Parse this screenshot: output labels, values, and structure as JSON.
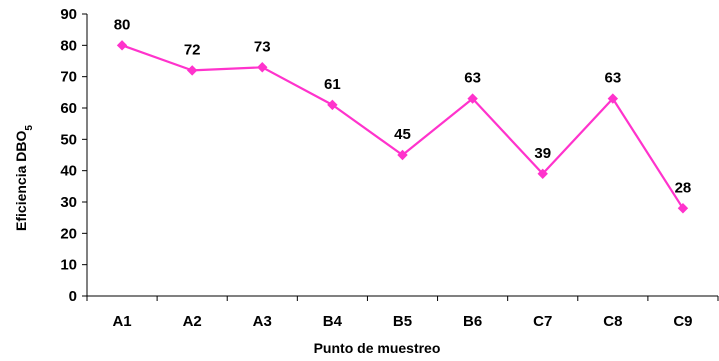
{
  "chart_data": {
    "type": "line",
    "title": "",
    "xlabel": "Punto de muestreo",
    "ylabel": {
      "main": "Eficiencia DBO",
      "subscript": "5"
    },
    "categories": [
      "A1",
      "A2",
      "A3",
      "B4",
      "B5",
      "B6",
      "C7",
      "C8",
      "C9"
    ],
    "series": [
      {
        "values": [
          80,
          72,
          73,
          61,
          45,
          63,
          39,
          63,
          28
        ]
      }
    ],
    "data_labels": [
      "80",
      "72",
      "73",
      "61",
      "45",
      "63",
      "39",
      "63",
      "28"
    ],
    "ylim": [
      0,
      90
    ],
    "yticks": [
      0,
      10,
      20,
      30,
      40,
      50,
      60,
      70,
      80,
      90
    ],
    "grid": false,
    "legend": "none",
    "marker": "diamond"
  },
  "colors": {
    "series": "#ff33cc",
    "axis": "#000000",
    "text": "#000000",
    "background": "#ffffff"
  }
}
